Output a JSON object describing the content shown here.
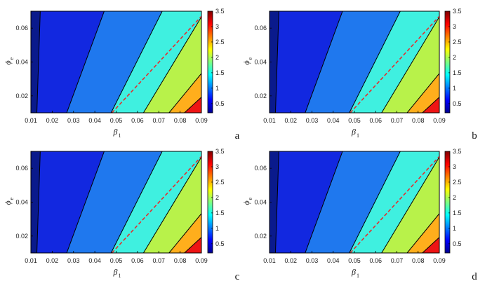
{
  "figure": {
    "panels": [
      "a",
      "b",
      "c",
      "d"
    ]
  },
  "chart_data": [
    {
      "type": "heatmap",
      "panel_label": "a",
      "xlabel": "β",
      "xlabel_sub": "1",
      "ylabel": "ϕ",
      "ylabel_sub": "e",
      "x_ticks": [
        "0.01",
        "0.02",
        "0.03",
        "0.04",
        "0.05",
        "0.06",
        "0.07",
        "0.08",
        "0.09"
      ],
      "y_ticks": [
        "0.02",
        "0.04",
        "0.06"
      ],
      "xlim": [
        0.01,
        0.09
      ],
      "ylim": [
        0.01,
        0.07
      ],
      "contour_levels": [
        0.5,
        1.0,
        1.5,
        2.0,
        2.5,
        3.0
      ],
      "level_region_colors": [
        "#0a1a8c",
        "#1228e0",
        "#1f78ee",
        "#3ff0e0",
        "#b8f24a",
        "#ffae1c",
        "#ee1414"
      ],
      "dashed_line": {
        "x_start": 0.048,
        "x_end": 0.09,
        "y_start": 0.01,
        "y_end": 0.067,
        "color": "#e03030"
      },
      "colorbar": {
        "ticks": [
          "0.5",
          "1",
          "1.5",
          "2",
          "2.5",
          "3",
          "3.5"
        ],
        "range": [
          0.2,
          3.5
        ]
      }
    },
    {
      "type": "heatmap",
      "panel_label": "b",
      "xlabel": "β",
      "xlabel_sub": "1",
      "ylabel": "ϕ",
      "ylabel_sub": "e",
      "x_ticks": [
        "0.01",
        "0.02",
        "0.03",
        "0.04",
        "0.05",
        "0.06",
        "0.07",
        "0.08",
        "0.09"
      ],
      "y_ticks": [
        "0.02",
        "0.04",
        "0.06"
      ],
      "xlim": [
        0.01,
        0.09
      ],
      "ylim": [
        0.01,
        0.07
      ],
      "contour_levels": [
        0.5,
        1.0,
        1.5,
        2.0,
        2.5,
        3.0
      ],
      "level_region_colors": [
        "#0a1a8c",
        "#1228e0",
        "#1f78ee",
        "#3ff0e0",
        "#b8f24a",
        "#ffae1c",
        "#ee1414"
      ],
      "dashed_line": {
        "x_start": 0.048,
        "x_end": 0.09,
        "y_start": 0.01,
        "y_end": 0.067,
        "color": "#e03030"
      },
      "colorbar": {
        "ticks": [
          "0.5",
          "1",
          "1.5",
          "2",
          "2.5",
          "3",
          "3.5"
        ],
        "range": [
          0.2,
          3.5
        ]
      }
    },
    {
      "type": "heatmap",
      "panel_label": "c",
      "xlabel": "β",
      "xlabel_sub": "1",
      "ylabel": "ϕ",
      "ylabel_sub": "e",
      "x_ticks": [
        "0.01",
        "0.02",
        "0.03",
        "0.04",
        "0.05",
        "0.06",
        "0.07",
        "0.08",
        "0.09"
      ],
      "y_ticks": [
        "0.02",
        "0.04",
        "0.06"
      ],
      "xlim": [
        0.01,
        0.09
      ],
      "ylim": [
        0.01,
        0.07
      ],
      "contour_levels": [
        0.5,
        1.0,
        1.5,
        2.0,
        2.5,
        3.0
      ],
      "level_region_colors": [
        "#0a1a8c",
        "#1228e0",
        "#1f78ee",
        "#3ff0e0",
        "#b8f24a",
        "#ffae1c",
        "#ee1414"
      ],
      "dashed_line": {
        "x_start": 0.048,
        "x_end": 0.09,
        "y_start": 0.01,
        "y_end": 0.067,
        "color": "#e03030"
      },
      "colorbar": {
        "ticks": [
          "0.5",
          "1",
          "1.5",
          "2",
          "2.5",
          "3",
          "3.5"
        ],
        "range": [
          0.2,
          3.5
        ]
      }
    },
    {
      "type": "heatmap",
      "panel_label": "d",
      "xlabel": "β",
      "xlabel_sub": "1",
      "ylabel": "ϕ",
      "ylabel_sub": "e",
      "x_ticks": [
        "0.01",
        "0.02",
        "0.03",
        "0.04",
        "0.05",
        "0.06",
        "0.07",
        "0.08",
        "0.09"
      ],
      "y_ticks": [
        "0.02",
        "0.04",
        "0.06"
      ],
      "xlim": [
        0.01,
        0.09
      ],
      "ylim": [
        0.01,
        0.07
      ],
      "contour_levels": [
        0.5,
        1.0,
        1.5,
        2.0,
        2.5,
        3.0
      ],
      "level_region_colors": [
        "#0a1a8c",
        "#1228e0",
        "#1f78ee",
        "#3ff0e0",
        "#b8f24a",
        "#ffae1c",
        "#ee1414"
      ],
      "dashed_line": {
        "x_start": 0.048,
        "x_end": 0.09,
        "y_start": 0.01,
        "y_end": 0.067,
        "color": "#e03030"
      },
      "colorbar": {
        "ticks": [
          "0.5",
          "1",
          "1.5",
          "2",
          "2.5",
          "3",
          "3.5"
        ],
        "range": [
          0.2,
          3.5
        ]
      }
    }
  ]
}
